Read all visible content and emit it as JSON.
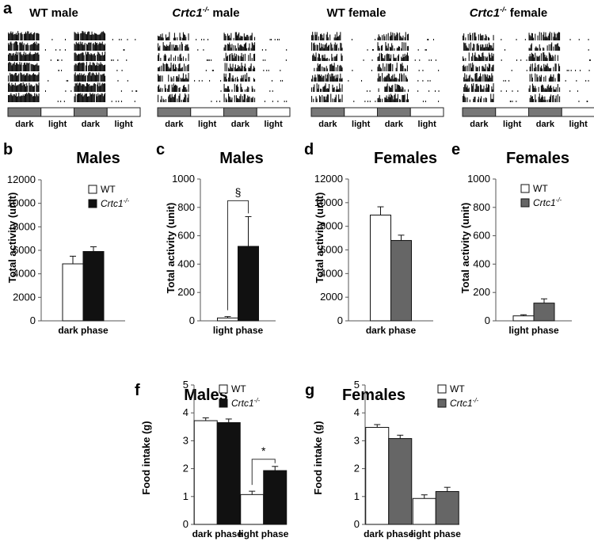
{
  "panel_letters": [
    "a",
    "b",
    "c",
    "d",
    "e",
    "f",
    "g"
  ],
  "actograms": [
    {
      "title_plain": "WT male",
      "title_italic": "",
      "title_sup": "",
      "title_rest": ""
    },
    {
      "title_plain": "",
      "title_italic": "Crtc1",
      "title_sup": "-/-",
      "title_rest": " male"
    },
    {
      "title_plain": "WT female",
      "title_italic": "",
      "title_sup": "",
      "title_rest": ""
    },
    {
      "title_plain": "",
      "title_italic": "Crtc1",
      "title_sup": "-/-",
      "title_rest": " female"
    }
  ],
  "phase_labels": [
    "dark",
    "light",
    "dark",
    "light"
  ],
  "legend": {
    "wt": "WT",
    "ko_italic": "Crtc1",
    "ko_sup": "-/-"
  },
  "colors": {
    "wt": "#ffffff",
    "ko_male": "#111111",
    "ko_female": "#666666",
    "dark_band": "#777777"
  },
  "chart_data": [
    {
      "panel": "b",
      "type": "bar",
      "title": "Males",
      "ylabel": "Total activity (unit)",
      "categories": [
        "dark phase"
      ],
      "ylim": [
        0,
        12000
      ],
      "yticks": [
        0,
        2000,
        4000,
        6000,
        8000,
        10000,
        12000
      ],
      "legend_position": "top-right",
      "series": [
        {
          "name": "WT",
          "values": [
            4850
          ],
          "errors": [
            650
          ]
        },
        {
          "name": "Crtc1-/-",
          "values": [
            5900
          ],
          "errors": [
            400
          ]
        }
      ]
    },
    {
      "panel": "c",
      "type": "bar",
      "title": "Males",
      "ylabel": "Total activity (unit)",
      "categories": [
        "light phase"
      ],
      "ylim": [
        0,
        1000
      ],
      "yticks": [
        0,
        200,
        400,
        600,
        800,
        1000
      ],
      "series": [
        {
          "name": "WT",
          "values": [
            20
          ],
          "errors": [
            10
          ]
        },
        {
          "name": "Crtc1-/-",
          "values": [
            525
          ],
          "errors": [
            210
          ]
        }
      ],
      "significance": "§"
    },
    {
      "panel": "d",
      "type": "bar",
      "title": "Females",
      "ylabel": "Total activity (unit)",
      "categories": [
        "dark phase"
      ],
      "ylim": [
        0,
        12000
      ],
      "yticks": [
        0,
        2000,
        4000,
        6000,
        8000,
        10000,
        12000
      ],
      "series": [
        {
          "name": "WT",
          "values": [
            8950
          ],
          "errors": [
            700
          ]
        },
        {
          "name": "Crtc1-/-",
          "values": [
            6800
          ],
          "errors": [
            450
          ]
        }
      ]
    },
    {
      "panel": "e",
      "type": "bar",
      "title": "Females",
      "ylabel": "Total activity (unit)",
      "categories": [
        "light phase"
      ],
      "ylim": [
        0,
        1000
      ],
      "yticks": [
        0,
        200,
        400,
        600,
        800,
        1000
      ],
      "legend_position": "top-right",
      "series": [
        {
          "name": "WT",
          "values": [
            35
          ],
          "errors": [
            8
          ]
        },
        {
          "name": "Crtc1-/-",
          "values": [
            125
          ],
          "errors": [
            30
          ]
        }
      ]
    },
    {
      "panel": "f",
      "type": "bar",
      "title": "Males",
      "ylabel": "Food intake (g)",
      "categories": [
        "dark phase",
        "light phase"
      ],
      "ylim": [
        0,
        5
      ],
      "yticks": [
        0,
        1,
        2,
        3,
        4,
        5
      ],
      "legend_position": "top-right",
      "series": [
        {
          "name": "WT",
          "values": [
            3.72,
            1.07
          ],
          "errors": [
            0.1,
            0.12
          ]
        },
        {
          "name": "Crtc1-/-",
          "values": [
            3.65,
            1.93
          ],
          "errors": [
            0.13,
            0.15
          ]
        }
      ],
      "significance": "*"
    },
    {
      "panel": "g",
      "type": "bar",
      "title": "Females",
      "ylabel": "Food intake (g)",
      "categories": [
        "dark phase",
        "light phase"
      ],
      "ylim": [
        0,
        5
      ],
      "yticks": [
        0,
        1,
        2,
        3,
        4,
        5
      ],
      "legend_position": "top-right",
      "series": [
        {
          "name": "WT",
          "values": [
            3.48,
            0.93
          ],
          "errors": [
            0.1,
            0.13
          ]
        },
        {
          "name": "Crtc1-/-",
          "values": [
            3.08,
            1.18
          ],
          "errors": [
            0.12,
            0.15
          ]
        }
      ]
    }
  ]
}
